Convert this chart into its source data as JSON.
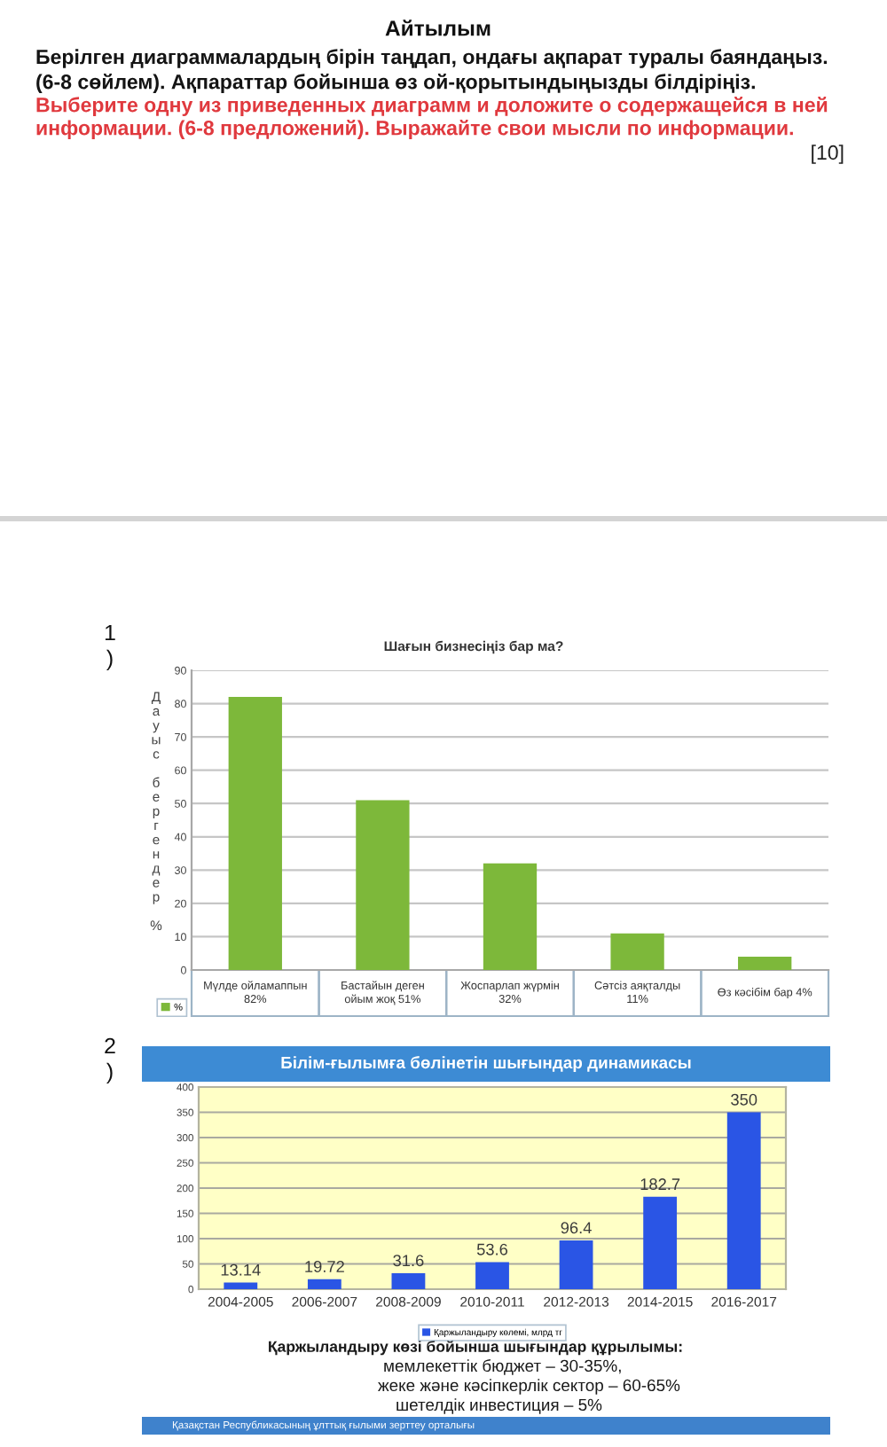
{
  "chart_data": [
    {
      "type": "other",
      "title": "Айтылым",
      "annotations": [
        "Берілген диаграммалардың бірін таңдап, ондағы ақпарат туралы баяндаңыз.",
        "(6-8 сөйлем). Ақпараттар бойынша өз ой-қорытындыңызды білдіріңіз.",
        "Выберите одну из приведенных диаграмм и доложите о содержащейся в ней",
        "информации. (6-8 предложений). Выражайте свои мысли по информации.",
        "[10]"
      ]
    },
    {
      "type": "bar",
      "title": "Шағын бизнесіңіз бар ма?",
      "ylabel": "Дауыс бергендер %",
      "categories": [
        "Мүлде ойламаппын 82%",
        "Бастайын деген ойым жоқ 51%",
        "Жоспарлап жүрмін 32%",
        "Сәтсіз аяқталды 11%",
        "Өз кәсібім бар 4%"
      ],
      "series": [
        {
          "name": "%",
          "color": "#7db83a",
          "values": [
            82,
            51,
            32,
            11,
            4
          ]
        }
      ],
      "ylim": [
        0,
        90
      ],
      "yticks": [
        0,
        10,
        20,
        30,
        40,
        50,
        60,
        70,
        80,
        90
      ],
      "grid": "y",
      "legend": "bottom left",
      "annotations": [
        "1)"
      ]
    },
    {
      "type": "bar",
      "title": "Білім-ғылымға бөлінетін шығындар динамикасы",
      "categories": [
        "2004-2005",
        "2006-2007",
        "2008-2009",
        "2010-2011",
        "2012-2013",
        "2014-2015",
        "2016-2017"
      ],
      "series": [
        {
          "name": "Қаржыландыру көлемі, млрд тг",
          "color": "#2a55e5",
          "values": [
            13.14,
            19.72,
            31.6,
            53.6,
            96.4,
            182.7,
            350
          ]
        }
      ],
      "ylim": [
        0,
        400
      ],
      "yticks": [
        0,
        50,
        100,
        150,
        200,
        250,
        300,
        350,
        400
      ],
      "grid": "y",
      "legend": "bottom",
      "data_labels": true,
      "annotations": [
        "2)",
        "Қаржыландыру көзі бойынша шығындар құрылымы:",
        "мемлекеттік бюджет – 30-35%,",
        "жеке және кәсіпкерлік сектор – 60-65%",
        "шетелдік инвестиция – 5%",
        "Қазақстан Республикасының ұлттық ғылыми зерттеу орталығы"
      ]
    }
  ]
}
